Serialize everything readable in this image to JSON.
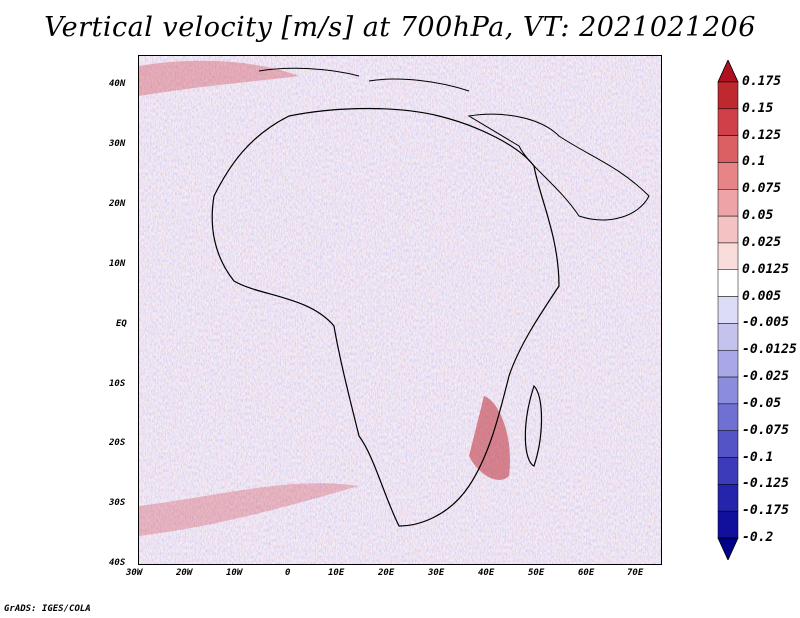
{
  "title": "Vertical velocity [m/s] at 700hPa, VT: 2021021206",
  "footer": "GrADS: IGES/COLA",
  "map": {
    "lon_range": [
      -30,
      75
    ],
    "lat_range": [
      -40,
      45
    ],
    "lat_labels": [
      "40N",
      "30N",
      "20N",
      "10N",
      "EQ",
      "10S",
      "20S",
      "30S",
      "40S"
    ],
    "lon_labels": [
      "30W",
      "20W",
      "10W",
      "0",
      "10E",
      "20E",
      "30E",
      "40E",
      "50E",
      "60E",
      "70E"
    ]
  },
  "colorbar": {
    "labels": [
      "0.175",
      "0.15",
      "0.125",
      "0.1",
      "0.075",
      "0.05",
      "0.025",
      "0.0125",
      "0.005",
      "-0.005",
      "-0.0125",
      "-0.025",
      "-0.05",
      "-0.075",
      "-0.1",
      "-0.125",
      "-0.175",
      "-0.2"
    ],
    "colors": [
      "#b01020",
      "#c02830",
      "#cf4048",
      "#db6064",
      "#e68488",
      "#eea4a6",
      "#f4c2c3",
      "#f9dcdc",
      "#ffffff",
      "#dcdcf6",
      "#c3c3ee",
      "#a8a8e6",
      "#8c8cdc",
      "#7070d2",
      "#5454c6",
      "#3c3cba",
      "#2424ac",
      "#10109c",
      "#000088"
    ]
  }
}
